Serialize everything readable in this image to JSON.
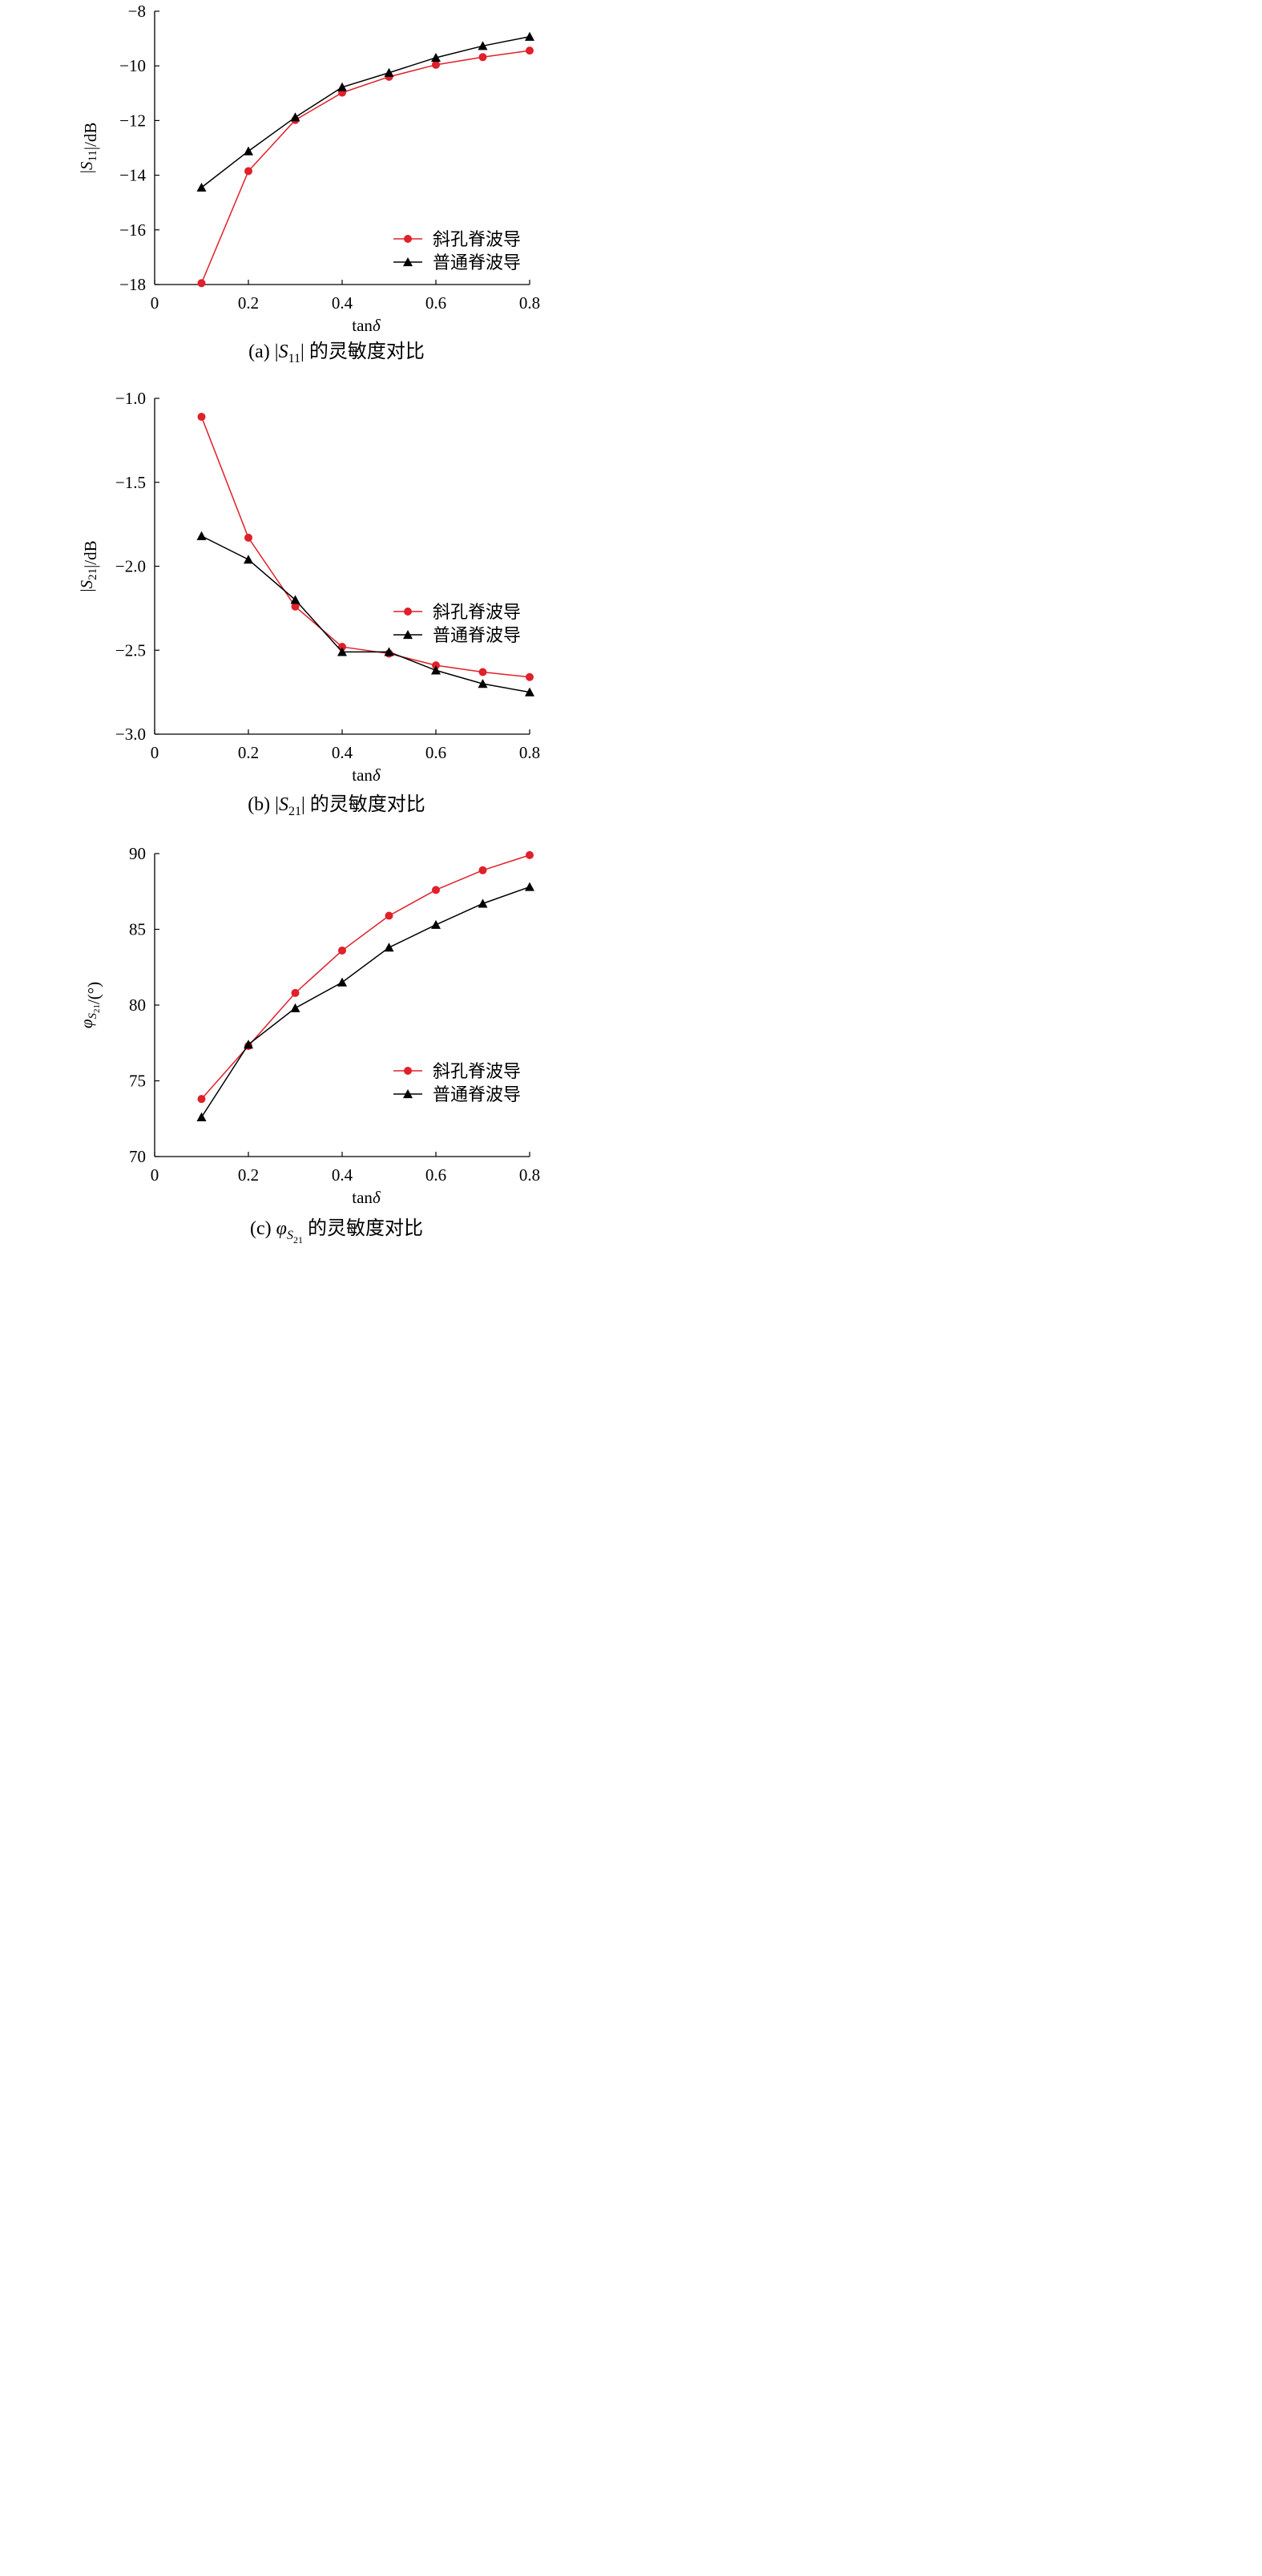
{
  "chart_data": [
    {
      "type": "line",
      "caption": "(a) |S11| 的灵敏度对比",
      "xlabel": "tanδ",
      "ylabel": "|S11|/dB",
      "xlim": [
        0,
        0.8
      ],
      "ylim": [
        -18,
        -8
      ],
      "xticks": [
        0,
        0.2,
        0.4,
        0.6,
        0.8
      ],
      "xtick_labels": [
        "0",
        "0.2",
        "0.4",
        "0.6",
        "0.8"
      ],
      "yticks": [
        -18,
        -16,
        -14,
        -12,
        -10,
        -8
      ],
      "ytick_labels": [
        "−18",
        "−16",
        "−14",
        "−12",
        "−10",
        "−8"
      ],
      "x": [
        0.1,
        0.2,
        0.3,
        0.4,
        0.5,
        0.6,
        0.7,
        0.8
      ],
      "legend_position": "lower-right",
      "series": [
        {
          "name": "斜孔脊波导",
          "color": "#e0202a",
          "marker": "circle",
          "values": [
            -17.95,
            -13.85,
            -11.98,
            -10.98,
            -10.4,
            -9.96,
            -9.68,
            -9.44
          ]
        },
        {
          "name": "普通脊波导",
          "color": "#000000",
          "marker": "triangle",
          "values": [
            -14.45,
            -13.12,
            -11.88,
            -10.78,
            -10.25,
            -9.7,
            -9.27,
            -8.93
          ]
        }
      ]
    },
    {
      "type": "line",
      "caption": "(b) |S21| 的灵敏度对比",
      "xlabel": "tanδ",
      "ylabel": "|S21|/dB",
      "xlim": [
        0,
        0.8
      ],
      "ylim": [
        -3.0,
        -1.0
      ],
      "xticks": [
        0,
        0.2,
        0.4,
        0.6,
        0.8
      ],
      "xtick_labels": [
        "0",
        "0.2",
        "0.4",
        "0.6",
        "0.8"
      ],
      "yticks": [
        -3.0,
        -2.5,
        -2.0,
        -1.5,
        -1.0
      ],
      "ytick_labels": [
        "−3.0",
        "−2.5",
        "−2.0",
        "−1.5",
        "−1.0"
      ],
      "x": [
        0.1,
        0.2,
        0.3,
        0.4,
        0.5,
        0.6,
        0.7,
        0.8
      ],
      "legend_position": "right",
      "series": [
        {
          "name": "斜孔脊波导",
          "color": "#e0202a",
          "marker": "circle",
          "values": [
            -1.11,
            -1.83,
            -2.24,
            -2.48,
            -2.52,
            -2.59,
            -2.63,
            -2.66
          ]
        },
        {
          "name": "普通脊波导",
          "color": "#000000",
          "marker": "triangle",
          "values": [
            -1.82,
            -1.96,
            -2.2,
            -2.51,
            -2.51,
            -2.62,
            -2.7,
            -2.75
          ]
        }
      ]
    },
    {
      "type": "line",
      "caption": "(c) φS21 的灵敏度对比",
      "xlabel": "tanδ",
      "ylabel": "φS21/(°)",
      "xlim": [
        0,
        0.8
      ],
      "ylim": [
        70,
        90
      ],
      "xticks": [
        0,
        0.2,
        0.4,
        0.6,
        0.8
      ],
      "xtick_labels": [
        "0",
        "0.2",
        "0.4",
        "0.6",
        "0.8"
      ],
      "yticks": [
        70,
        75,
        80,
        85,
        90
      ],
      "ytick_labels": [
        "70",
        "75",
        "80",
        "85",
        "90"
      ],
      "x": [
        0.1,
        0.2,
        0.3,
        0.4,
        0.5,
        0.6,
        0.7,
        0.8
      ],
      "legend_position": "lower-right",
      "series": [
        {
          "name": "斜孔脊波导",
          "color": "#e0202a",
          "marker": "circle",
          "values": [
            73.8,
            77.3,
            80.8,
            83.6,
            85.9,
            87.6,
            88.9,
            89.9
          ]
        },
        {
          "name": "普通脊波导",
          "color": "#000000",
          "marker": "triangle",
          "values": [
            72.6,
            77.4,
            79.8,
            81.5,
            83.8,
            85.3,
            86.7,
            87.8
          ]
        }
      ]
    }
  ]
}
